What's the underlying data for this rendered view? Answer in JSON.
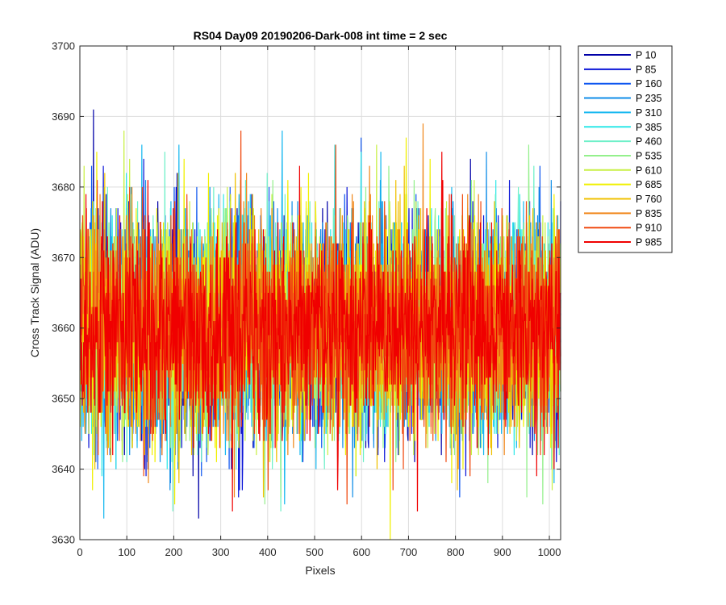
{
  "chart_data": {
    "type": "line",
    "title": "RS04 Day09 20190206-Dark-008 int time = 2 sec",
    "xlabel": "Pixels",
    "ylabel": "Cross Track Signal (ADU)",
    "xlim": [
      0,
      1024
    ],
    "ylim": [
      3630,
      3700
    ],
    "xticks": [
      0,
      100,
      200,
      300,
      400,
      500,
      600,
      700,
      800,
      900,
      1000
    ],
    "yticks": [
      3630,
      3640,
      3650,
      3660,
      3670,
      3680,
      3690,
      3700
    ],
    "xtick_labels": [
      "0",
      "100",
      "200",
      "300",
      "400",
      "500",
      "600",
      "700",
      "800",
      "900",
      "1000"
    ],
    "ytick_labels": [
      "3630",
      "3640",
      "3650",
      "3660",
      "3670",
      "3680",
      "3690",
      "3700"
    ],
    "grid": true,
    "legend_position": "outside-top-right",
    "noise_mean": 3660,
    "noise_std": 7.5,
    "samples_per_series": 1024,
    "series": [
      {
        "name": "P 10",
        "color": "#0000a8",
        "peaks": [
          {
            "x": 28,
            "y": 3691
          },
          {
            "x": 252,
            "y": 3633
          }
        ]
      },
      {
        "name": "P 85",
        "color": "#0a14d8",
        "peaks": [
          {
            "x": 140,
            "y": 3639
          },
          {
            "x": 345,
            "y": 3637
          }
        ]
      },
      {
        "name": "P 160",
        "color": "#0f57f0",
        "peaks": [
          {
            "x": 598,
            "y": 3687
          },
          {
            "x": 808,
            "y": 3636
          }
        ]
      },
      {
        "name": "P 235",
        "color": "#118ee8",
        "peaks": [
          {
            "x": 580,
            "y": 3636
          },
          {
            "x": 865,
            "y": 3685
          }
        ]
      },
      {
        "name": "P 310",
        "color": "#16b8f0",
        "peaks": [
          {
            "x": 50,
            "y": 3633
          },
          {
            "x": 640,
            "y": 3685
          }
        ]
      },
      {
        "name": "P 385",
        "color": "#2ee8e8",
        "peaks": [
          {
            "x": 185,
            "y": 3640
          },
          {
            "x": 885,
            "y": 3681
          }
        ]
      },
      {
        "name": "P 460",
        "color": "#6ef0c8",
        "peaks": [
          {
            "x": 180,
            "y": 3685
          },
          {
            "x": 520,
            "y": 3640
          }
        ]
      },
      {
        "name": "P 535",
        "color": "#94f08c",
        "peaks": [
          {
            "x": 955,
            "y": 3686
          },
          {
            "x": 985,
            "y": 3635
          }
        ]
      },
      {
        "name": "P 610",
        "color": "#c8f044",
        "peaks": [
          {
            "x": 8,
            "y": 3683
          },
          {
            "x": 1005,
            "y": 3637
          }
        ]
      },
      {
        "name": "P 685",
        "color": "#f0f000",
        "peaks": [
          {
            "x": 660,
            "y": 3630
          },
          {
            "x": 470,
            "y": 3680
          }
        ]
      },
      {
        "name": "P 760",
        "color": "#f0c000",
        "peaks": [
          {
            "x": 210,
            "y": 3638
          },
          {
            "x": 935,
            "y": 3643
          }
        ]
      },
      {
        "name": "P 835",
        "color": "#f0881c",
        "peaks": [
          {
            "x": 730,
            "y": 3689
          },
          {
            "x": 145,
            "y": 3638
          }
        ]
      },
      {
        "name": "P 910",
        "color": "#f04a10",
        "peaks": [
          {
            "x": 400,
            "y": 3637
          },
          {
            "x": 608,
            "y": 3652
          }
        ]
      },
      {
        "name": "P 985",
        "color": "#f00000",
        "peaks": [
          {
            "x": 718,
            "y": 3634
          },
          {
            "x": 770,
            "y": 3685
          }
        ]
      }
    ]
  }
}
